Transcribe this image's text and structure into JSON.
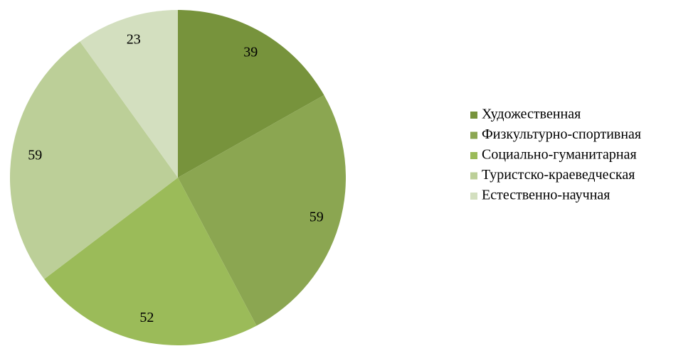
{
  "chart_data": {
    "type": "pie",
    "categories": [
      "Художественная",
      "Физкультурно-спортивная",
      "Социально-гуманитарная",
      "Туристско-краеведческая",
      "Естественно-научная"
    ],
    "values": [
      39,
      59,
      52,
      59,
      23
    ],
    "colors": [
      "#77933c",
      "#8ba651",
      "#9bbb59",
      "#bccf98",
      "#d3dfbf"
    ],
    "legend": "right"
  }
}
